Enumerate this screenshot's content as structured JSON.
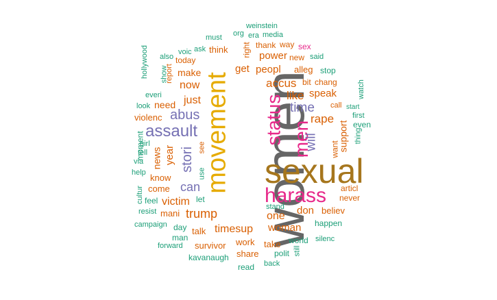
{
  "colors": {
    "teal": "#1b9e77",
    "orange": "#d95f02",
    "purple": "#7570b3",
    "pink": "#e7298a",
    "gold": "#e6ab02",
    "brown": "#a6761d",
    "gray": "#666666"
  },
  "words": [
    {
      "text": "women"
    },
    {
      "text": "sexual"
    },
    {
      "text": "movement"
    },
    {
      "text": "harass"
    },
    {
      "text": "status"
    },
    {
      "text": "men"
    },
    {
      "text": "assault"
    },
    {
      "text": "abus"
    },
    {
      "text": "stori"
    },
    {
      "text": "time"
    },
    {
      "text": "will"
    },
    {
      "text": "trump"
    },
    {
      "text": "timesup"
    },
    {
      "text": "can"
    },
    {
      "text": "accus"
    },
    {
      "text": "like"
    },
    {
      "text": "rape"
    },
    {
      "text": "just"
    },
    {
      "text": "now"
    },
    {
      "text": "victim"
    },
    {
      "text": "one"
    },
    {
      "text": "woman"
    },
    {
      "text": "speak"
    },
    {
      "text": "peopl"
    },
    {
      "text": "power"
    },
    {
      "text": "get"
    },
    {
      "text": "support"
    },
    {
      "text": "year"
    },
    {
      "text": "need"
    },
    {
      "text": "make"
    },
    {
      "text": "news"
    },
    {
      "text": "don"
    },
    {
      "text": "believ"
    },
    {
      "text": "survivor"
    },
    {
      "text": "work"
    },
    {
      "text": "take"
    },
    {
      "text": "share"
    },
    {
      "text": "talk"
    },
    {
      "text": "mani"
    },
    {
      "text": "come"
    },
    {
      "text": "know"
    },
    {
      "text": "violenc"
    },
    {
      "text": "want"
    },
    {
      "text": "alleg"
    },
    {
      "text": "bit"
    },
    {
      "text": "chang"
    },
    {
      "text": "stop"
    },
    {
      "text": "think"
    },
    {
      "text": "right"
    },
    {
      "text": "thank"
    },
    {
      "text": "way"
    },
    {
      "text": "sex"
    },
    {
      "text": "new"
    },
    {
      "text": "said"
    },
    {
      "text": "today"
    },
    {
      "text": "report"
    },
    {
      "text": "happen"
    },
    {
      "text": "never"
    },
    {
      "text": "articl"
    },
    {
      "text": "even"
    },
    {
      "text": "call"
    },
    {
      "text": "start"
    },
    {
      "text": "first"
    },
    {
      "text": "thing"
    },
    {
      "text": "watch"
    },
    {
      "text": "world"
    },
    {
      "text": "silenc"
    },
    {
      "text": "kavanaugh"
    },
    {
      "text": "read"
    },
    {
      "text": "back"
    },
    {
      "text": "polit"
    },
    {
      "text": "still"
    },
    {
      "text": "stand"
    },
    {
      "text": "forward"
    },
    {
      "text": "man"
    },
    {
      "text": "campaign"
    },
    {
      "text": "day"
    },
    {
      "text": "resist"
    },
    {
      "text": "feel"
    },
    {
      "text": "let"
    },
    {
      "text": "cultur"
    },
    {
      "text": "help"
    },
    {
      "text": "via"
    },
    {
      "text": "use"
    },
    {
      "text": "see"
    },
    {
      "text": "tell"
    },
    {
      "text": "girl"
    },
    {
      "text": "moment"
    },
    {
      "text": "look"
    },
    {
      "text": "everi"
    },
    {
      "text": "show"
    },
    {
      "text": "hollywood"
    },
    {
      "text": "also"
    },
    {
      "text": "voic"
    },
    {
      "text": "ask"
    },
    {
      "text": "must"
    },
    {
      "text": "org"
    },
    {
      "text": "era"
    },
    {
      "text": "media"
    },
    {
      "text": "weinstein"
    }
  ]
}
